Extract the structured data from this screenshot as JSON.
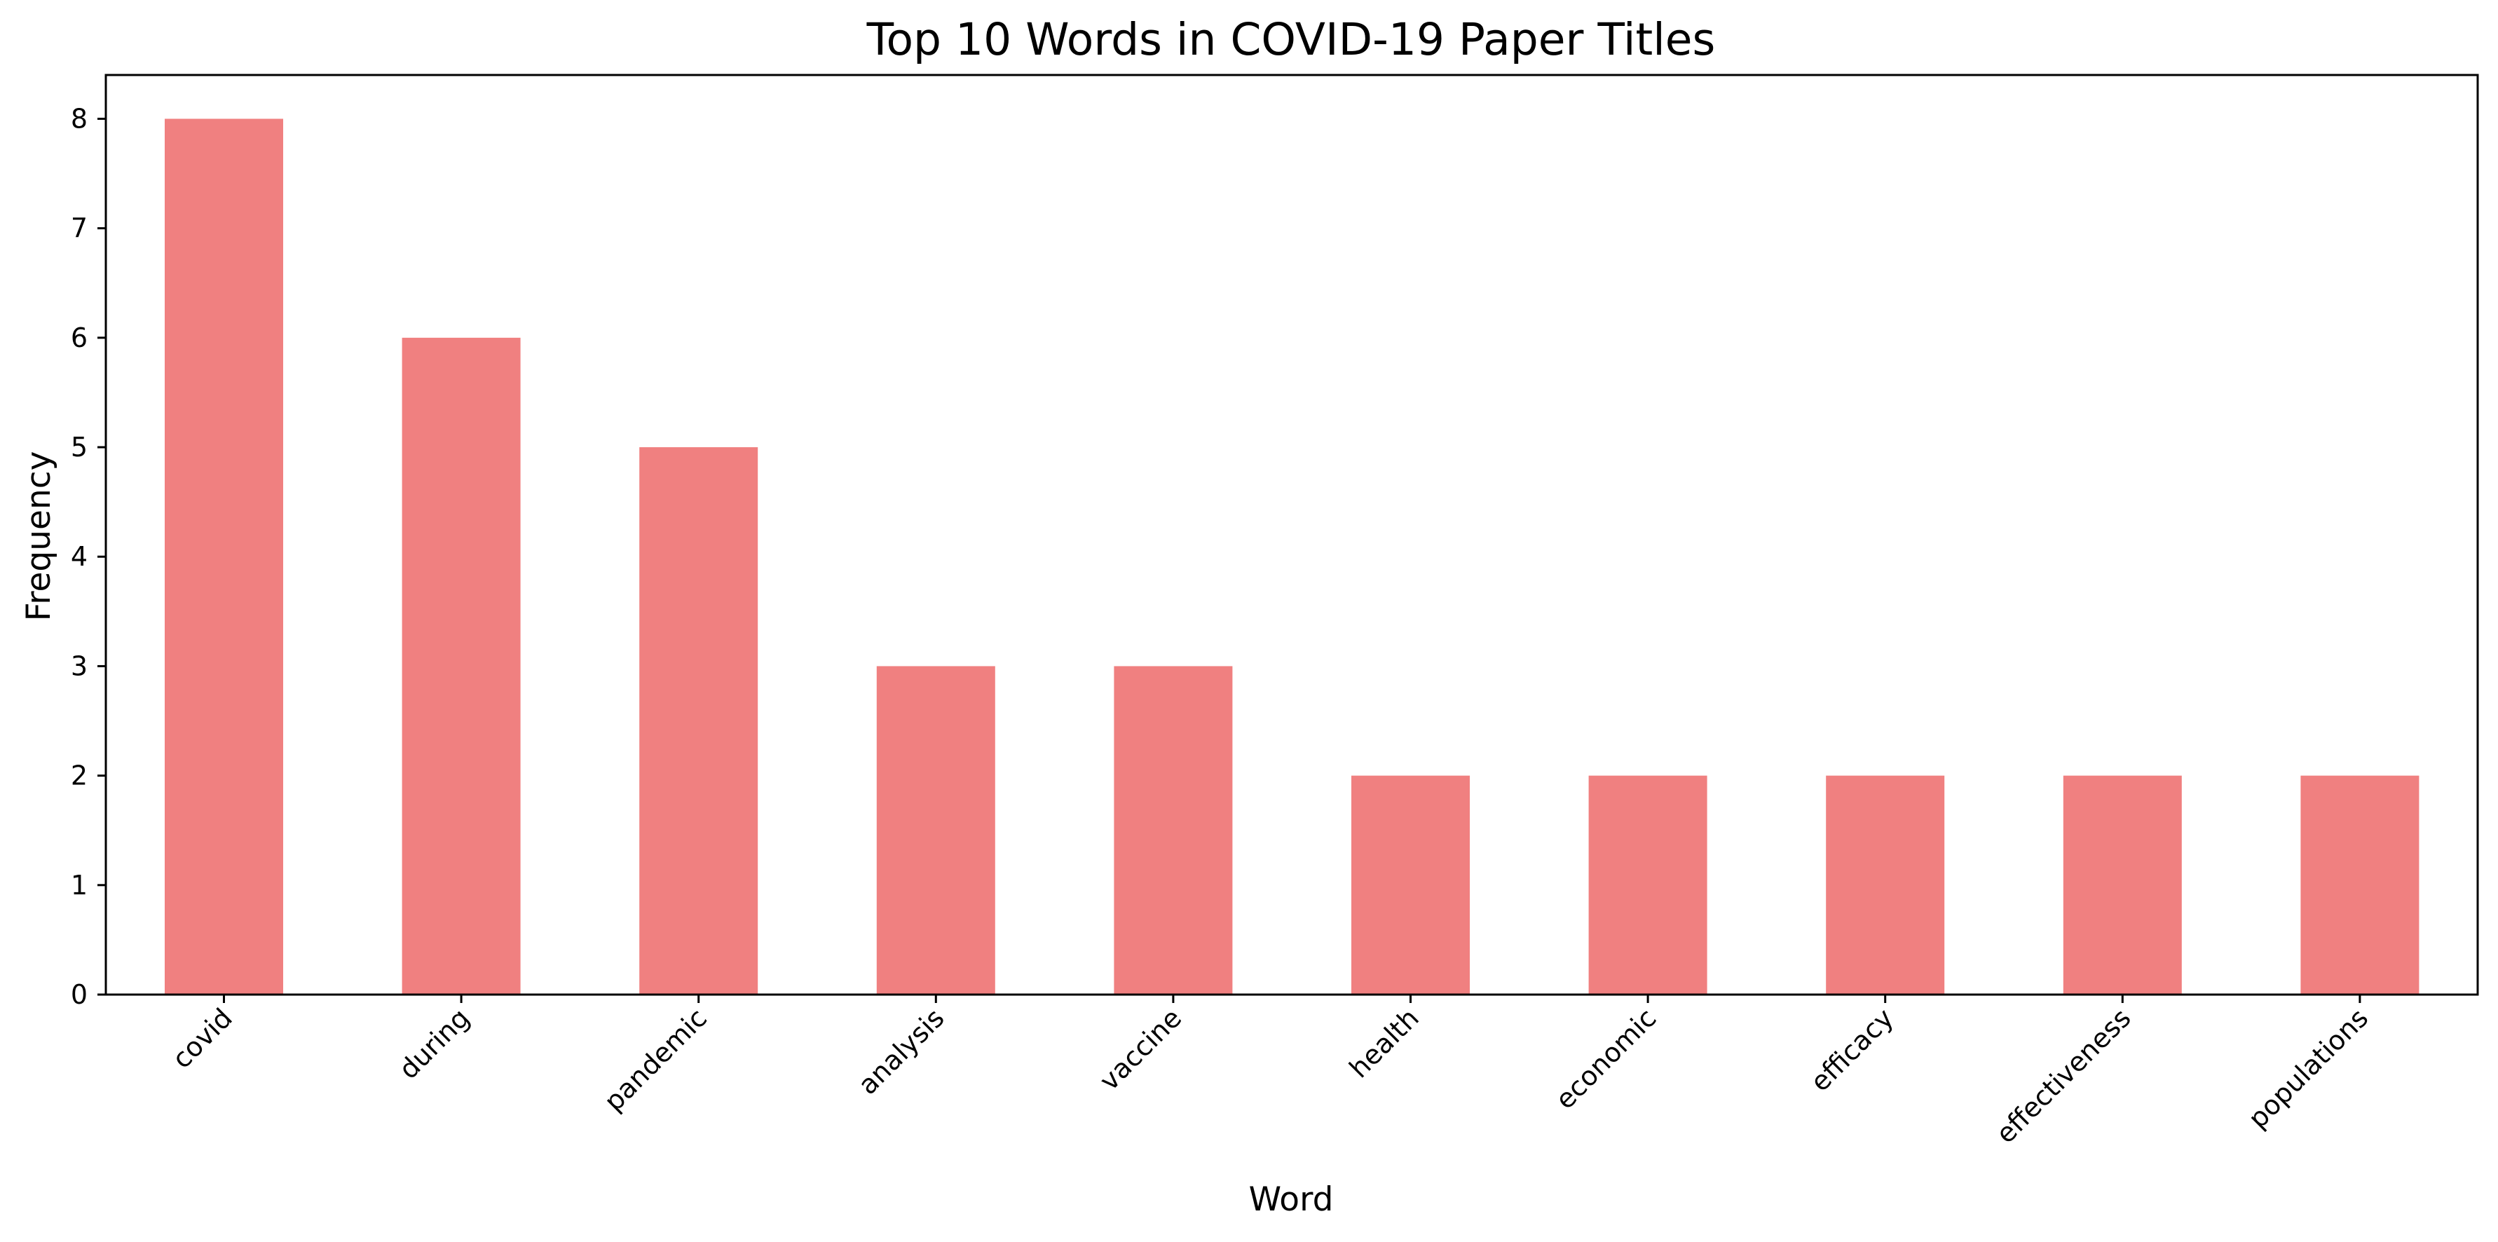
{
  "chart_data": {
    "type": "bar",
    "title": "Top 10 Words in COVID-19 Paper Titles",
    "xlabel": "Word",
    "ylabel": "Frequency",
    "categories": [
      "covid",
      "during",
      "pandemic",
      "analysis",
      "vaccine",
      "health",
      "economic",
      "efficacy",
      "effectiveness",
      "populations"
    ],
    "values": [
      8,
      6,
      5,
      3,
      3,
      2,
      2,
      2,
      2,
      2
    ],
    "ylim": [
      0,
      8.4
    ],
    "yticks": [
      0,
      1,
      2,
      3,
      4,
      5,
      6,
      7,
      8
    ],
    "bar_color": "#f08080",
    "grid": false,
    "legend": "none",
    "xtick_rotation": 45
  }
}
